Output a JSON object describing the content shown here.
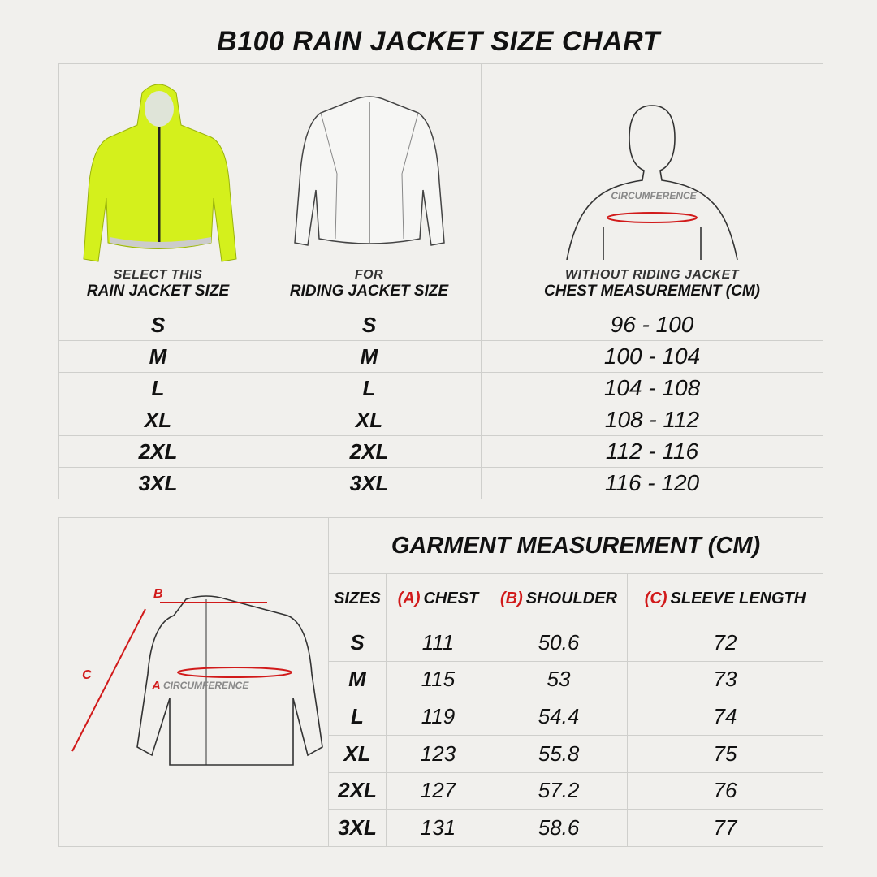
{
  "title": "B100 RAIN JACKET SIZE CHART",
  "size_table": {
    "columns": [
      {
        "caption": "SELECT THIS",
        "heading": "RAIN JACKET SIZE"
      },
      {
        "caption": "FOR",
        "heading": "RIDING JACKET SIZE"
      },
      {
        "caption": "WITHOUT RIDING JACKET",
        "heading": "CHEST MEASUREMENT (CM)"
      }
    ],
    "chest_label": "CIRCUMFERENCE",
    "rows": [
      [
        "S",
        "S",
        "96 - 100"
      ],
      [
        "M",
        "M",
        "100 - 104"
      ],
      [
        "L",
        "L",
        "104 - 108"
      ],
      [
        "XL",
        "XL",
        "108 - 112"
      ],
      [
        "2XL",
        "2XL",
        "112 - 116"
      ],
      [
        "3XL",
        "3XL",
        "116 - 120"
      ]
    ]
  },
  "garment_table": {
    "title": "GARMENT MEASUREMENT (CM)",
    "diagram": {
      "a": "A",
      "b": "B",
      "c": "C",
      "circumference": "CIRCUMFERENCE"
    },
    "headers": [
      {
        "label": "SIZES"
      },
      {
        "code": "(A)",
        "label": "CHEST"
      },
      {
        "code": "(B)",
        "label": "SHOULDER"
      },
      {
        "code": "(C)",
        "label": "SLEEVE LENGTH"
      }
    ],
    "rows": [
      [
        "S",
        111,
        50.6,
        72
      ],
      [
        "M",
        115,
        53,
        73
      ],
      [
        "L",
        119,
        54.4,
        74
      ],
      [
        "XL",
        123,
        55.8,
        75
      ],
      [
        "2XL",
        127,
        57.2,
        76
      ],
      [
        "3XL",
        131,
        58.6,
        77
      ]
    ]
  }
}
